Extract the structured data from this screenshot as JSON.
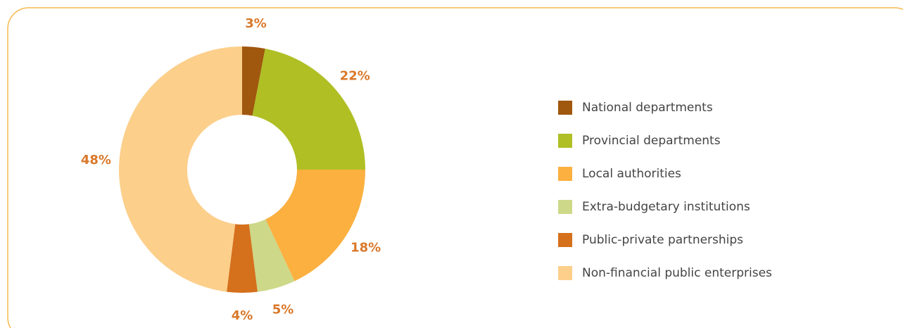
{
  "chart_data": {
    "type": "pie",
    "donut": true,
    "categories": [
      "National departments",
      "Provincial departments",
      "Local authorities",
      "Extra-budgetary institutions",
      "Public-private partnerships",
      "Non-financial public enterprises"
    ],
    "values": [
      3,
      22,
      18,
      5,
      4,
      48
    ],
    "value_labels": [
      "3%",
      "22%",
      "18%",
      "5%",
      "4%",
      "48%"
    ],
    "colors": [
      "#a0570e",
      "#afbf24",
      "#fbb040",
      "#cdd889",
      "#d5701c",
      "#fccf8b"
    ],
    "legend": "right"
  }
}
